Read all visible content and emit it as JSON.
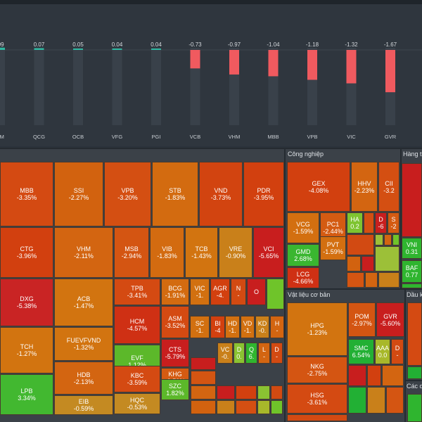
{
  "impact_chart": {
    "type": "bar",
    "categories": [
      "NM",
      "QCG",
      "OCB",
      "VFG",
      "PGI",
      "VCB",
      "VHM",
      "MBB",
      "VPB",
      "VIC",
      "GVR"
    ],
    "values": [
      0.09,
      0.07,
      0.05,
      0.04,
      0.04,
      -0.73,
      -0.97,
      -1.04,
      -1.18,
      -1.32,
      -1.67
    ],
    "value_labels": [
      ".09",
      "0.07",
      "0.05",
      "0.04",
      "0.04",
      "-0.73",
      "-0.97",
      "-1.04",
      "-1.18",
      "-1.32",
      "-1.67"
    ],
    "colors": {
      "positive": "#2fb7a0",
      "negative": "#f05a5f"
    }
  },
  "sectors": [
    {
      "id": "nganhang",
      "title": "",
      "tiles": [
        {
          "t": "MBB",
          "v": "-3.35%",
          "c": "#d44a12"
        },
        {
          "t": "SSI",
          "v": "-2.27%",
          "c": "#d2620f"
        },
        {
          "t": "VPB",
          "v": "-3.20%",
          "c": "#d44f12"
        },
        {
          "t": "STB",
          "v": "-1.83%",
          "c": "#d36b10"
        },
        {
          "t": "VND",
          "v": "-3.73%",
          "c": "#d24410"
        },
        {
          "t": "PDR",
          "v": "-3.95%",
          "c": "#d2400f"
        },
        {
          "t": "CTG",
          "v": "-3.96%",
          "c": "#d2400f"
        },
        {
          "t": "VHM",
          "v": "-2.11%",
          "c": "#d36511"
        },
        {
          "t": "MSB",
          "v": "-2.94%",
          "c": "#d45512"
        },
        {
          "t": "VIB",
          "v": "-1.83%",
          "c": "#d36b10"
        },
        {
          "t": "TCB",
          "v": "-1.43%",
          "c": "#d27410"
        },
        {
          "t": "VRE",
          "v": "-0.90%",
          "c": "#c9801a"
        },
        {
          "t": "VCI",
          "v": "-5.65%",
          "c": "#c81e1e"
        },
        {
          "t": "DXG",
          "v": "-5.38%",
          "c": "#c92424"
        },
        {
          "t": "ACB",
          "v": "-1.47%",
          "c": "#d27410"
        },
        {
          "t": "TPB",
          "v": "-3.41%",
          "c": "#d44a12"
        },
        {
          "t": "BCG",
          "v": "-1.91%",
          "c": "#d36b10"
        },
        {
          "t": "VIC",
          "v": "-1.",
          "c": "#d27010"
        },
        {
          "t": "AGR",
          "v": "-4.",
          "c": "#d2400f"
        },
        {
          "t": "N",
          "v": "-",
          "c": "#d24a12"
        },
        {
          "t": "O",
          "v": "",
          "c": "#c81e1e"
        },
        {
          "t": "",
          "v": "",
          "c": "#6fc42a"
        },
        {
          "t": "TCH",
          "v": "-1.27%",
          "c": "#d27410"
        },
        {
          "t": "FUEVFVND",
          "v": "-1.32%",
          "c": "#d27410"
        },
        {
          "t": "HCM",
          "v": "-4.57%",
          "c": "#cf3014"
        },
        {
          "t": "ASM",
          "v": "-3.52%",
          "c": "#d44a12"
        },
        {
          "t": "SC",
          "v": "-1.",
          "c": "#d27010"
        },
        {
          "t": "BI",
          "v": "-4",
          "c": "#d2400f"
        },
        {
          "t": "HD",
          "v": "-1.",
          "c": "#d27010"
        },
        {
          "t": "VD",
          "v": "-1.",
          "c": "#d27010"
        },
        {
          "t": "KD",
          "v": "-0.",
          "c": "#c9801a"
        },
        {
          "t": "H",
          "v": "-",
          "c": "#d36511"
        },
        {
          "t": "HDB",
          "v": "-2.13%",
          "c": "#d36511"
        },
        {
          "t": "EVF",
          "v": "1.12%",
          "c": "#5cb82a"
        },
        {
          "t": "CTS",
          "v": "-5.79%",
          "c": "#c81e1e"
        },
        {
          "t": "VC",
          "v": "-0.",
          "c": "#c9801a"
        },
        {
          "t": "D",
          "v": "0.",
          "c": "#8ac232"
        },
        {
          "t": "Q",
          "v": "6.",
          "c": "#2fb52f"
        },
        {
          "t": "L",
          "v": "-",
          "c": "#d36511"
        },
        {
          "t": "D",
          "v": "-",
          "c": "#d24a12"
        },
        {
          "t": "LPB",
          "v": "3.34%",
          "c": "#42b830"
        },
        {
          "t": "EIB",
          "v": "-0.59%",
          "c": "#c48a22"
        },
        {
          "t": "KBC",
          "v": "-3.59%",
          "c": "#d44a12"
        },
        {
          "t": "KHG",
          "v": "-2.50%",
          "c": "#d45b12"
        },
        {
          "t": "HQC",
          "v": "-0.53%",
          "c": "#c48a22"
        },
        {
          "t": "SZC",
          "v": "1.82%",
          "c": "#5cb82a"
        }
      ]
    },
    {
      "id": "congnghiep",
      "title": "Công nghiệp",
      "tiles": [
        {
          "t": "GEX",
          "v": "-4.08%",
          "c": "#d2400f"
        },
        {
          "t": "HHV",
          "v": "-2.23%",
          "c": "#d36511"
        },
        {
          "t": "CII",
          "v": "-3.2",
          "c": "#d44f12"
        },
        {
          "t": "VCG",
          "v": "-1.59%",
          "c": "#d36f10"
        },
        {
          "t": "PC1",
          "v": "-2.44%",
          "c": "#d45b12"
        },
        {
          "t": "HA",
          "v": "0.2",
          "c": "#7ec430"
        },
        {
          "t": "D",
          "v": "-6",
          "c": "#c81e1e"
        },
        {
          "t": "S",
          "v": "-2",
          "c": "#d45b12"
        },
        {
          "t": "GMD",
          "v": "2.68%",
          "c": "#3ab630"
        },
        {
          "t": "PVT",
          "v": "-1.59%",
          "c": "#d36f10"
        },
        {
          "t": "LCG",
          "v": "-4.66%",
          "c": "#cf3014"
        }
      ]
    },
    {
      "id": "hangtieudung",
      "title": "Hàng ti",
      "tiles": [
        {
          "t": "VNI",
          "v": "0.31",
          "c": "#2fb52f"
        },
        {
          "t": "BAF",
          "v": "0.77",
          "c": "#2fb52f"
        }
      ]
    },
    {
      "id": "vatlieu",
      "title": "Vật liệu cơ bản",
      "tiles": [
        {
          "t": "HPG",
          "v": "-1.23%",
          "c": "#d27410"
        },
        {
          "t": "POM",
          "v": "-2.97%",
          "c": "#d45512"
        },
        {
          "t": "GVR",
          "v": "-5.60%",
          "c": "#c81e1e"
        },
        {
          "t": "SMC",
          "v": "6.54%",
          "c": "#22b034"
        },
        {
          "t": "AAA",
          "v": "0.0",
          "c": "#a8b82a"
        },
        {
          "t": "D",
          "v": "-",
          "c": "#d24a12"
        },
        {
          "t": "NKG",
          "v": "-2.75%",
          "c": "#d45512"
        },
        {
          "t": "HSG",
          "v": "-3.61%",
          "c": "#d44a12"
        }
      ]
    },
    {
      "id": "daukhi",
      "title": "Dầu k",
      "tiles": []
    },
    {
      "id": "cacdv",
      "title": "Các d",
      "tiles": []
    }
  ]
}
